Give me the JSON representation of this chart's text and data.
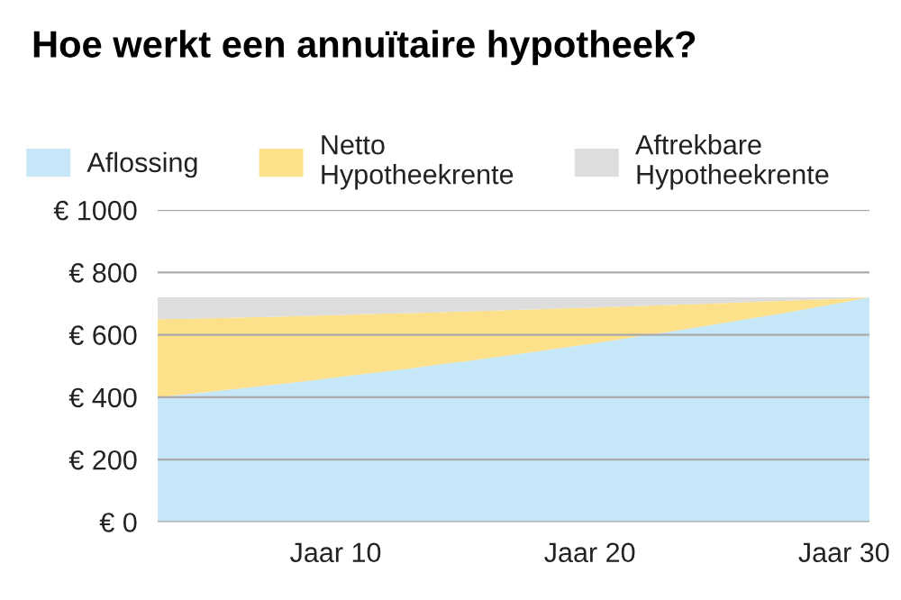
{
  "chart_data": {
    "type": "area",
    "title": "Hoe werkt een annuïtaire hypotheek?",
    "stacked": true,
    "categories": [
      null,
      null,
      null,
      null,
      null,
      null,
      null,
      "Jaar 10",
      null,
      null,
      null,
      null,
      null,
      null,
      null,
      null,
      null,
      "Jaar 20",
      null,
      null,
      null,
      null,
      null,
      null,
      null,
      null,
      null,
      "Jaar 30",
      null
    ],
    "series": [
      {
        "name": "Aflossing",
        "color": "#c5e7f7",
        "values": [
          400,
          408,
          417,
          426,
          435,
          444,
          453,
          463,
          473,
          483,
          493,
          504,
          514,
          525,
          536,
          548,
          559,
          571,
          583,
          596,
          608,
          621,
          634,
          648,
          661,
          675,
          690,
          704,
          720
        ]
      },
      {
        "name": "Netto\nHypotheekrente",
        "color": "#fde08a",
        "values": [
          250,
          243,
          236,
          229,
          222,
          215,
          208,
          200,
          193,
          185,
          177,
          168,
          161,
          152,
          144,
          134,
          126,
          116,
          107,
          97,
          87,
          77,
          67,
          56,
          46,
          35,
          23,
          12,
          0
        ]
      },
      {
        "name": "Aftrekbare\nHypotheekrente",
        "color": "#dddddd",
        "values": [
          70,
          69,
          67,
          65,
          63,
          61,
          59,
          57,
          54,
          52,
          50,
          48,
          45,
          43,
          40,
          38,
          35,
          33,
          30,
          27,
          25,
          22,
          19,
          16,
          13,
          10,
          7,
          4,
          0
        ]
      }
    ],
    "ylim": [
      0,
      1000
    ],
    "yticks": [
      {
        "value": 0,
        "label": "€ 0"
      },
      {
        "value": 200,
        "label": "€ 200"
      },
      {
        "value": 400,
        "label": "€ 400"
      },
      {
        "value": 600,
        "label": "€ 600"
      },
      {
        "value": 800,
        "label": "€ 800"
      },
      {
        "value": 1000,
        "label": "€ 1000"
      }
    ],
    "grid": "y",
    "legend": "top"
  }
}
